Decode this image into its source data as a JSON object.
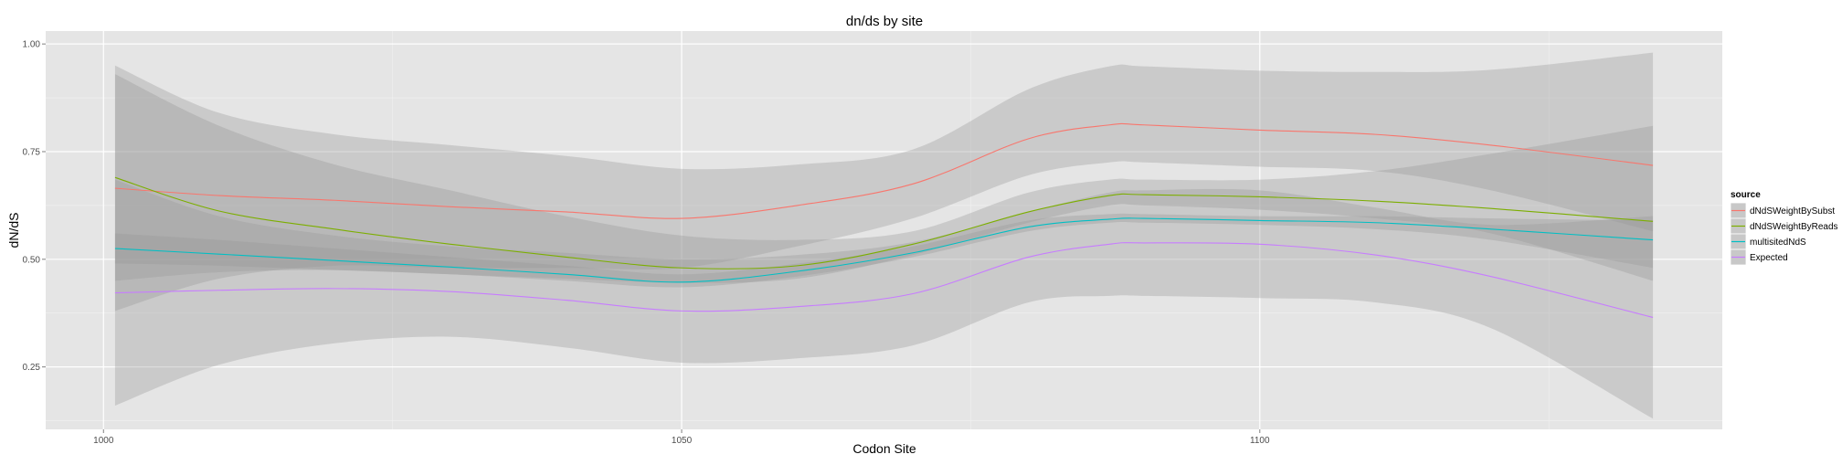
{
  "chart_data": {
    "type": "line",
    "title": "dn/ds by site",
    "xlabel": "Codon Site",
    "ylabel": "dN/dS",
    "xlim": [
      995,
      1140
    ],
    "ylim": [
      0.105,
      1.03
    ],
    "x_ticks": [
      1000,
      1050,
      1100
    ],
    "x_tick_labels": [
      "1000",
      "1050",
      "1100"
    ],
    "y_ticks": [
      0.25,
      0.5,
      0.75,
      1.0
    ],
    "y_tick_labels": [
      "0.25",
      "0.50",
      "0.75",
      "1.00"
    ],
    "grid": true,
    "legend": {
      "title": "source",
      "position": "right",
      "entries": [
        "dNdSWeightBySubst",
        "dNdSWeightByReads",
        "multisitedNdS",
        "Expected"
      ]
    },
    "band_color": "#999999",
    "panel_color": "#e5e5e5",
    "x": [
      1001,
      1010,
      1020,
      1030,
      1040,
      1050,
      1060,
      1070,
      1080,
      1087,
      1090,
      1100,
      1110,
      1120,
      1134
    ],
    "series": [
      {
        "name": "dNdSWeightBySubst",
        "color": "#f8766d",
        "y": [
          0.665,
          0.648,
          0.637,
          0.622,
          0.61,
          0.595,
          0.625,
          0.675,
          0.78,
          0.812,
          0.812,
          0.8,
          0.79,
          0.765,
          0.718
        ],
        "lower": [
          0.38,
          0.455,
          0.485,
          0.48,
          0.48,
          0.48,
          0.53,
          0.595,
          0.695,
          0.725,
          0.725,
          0.715,
          0.705,
          0.66,
          0.565
        ],
        "upper": [
          0.95,
          0.84,
          0.79,
          0.765,
          0.74,
          0.71,
          0.72,
          0.755,
          0.895,
          0.948,
          0.948,
          0.938,
          0.935,
          0.94,
          0.98
        ]
      },
      {
        "name": "dNdSWeightByReads",
        "color": "#7cae00",
        "y": [
          0.69,
          0.612,
          0.57,
          0.535,
          0.505,
          0.48,
          0.485,
          0.535,
          0.61,
          0.648,
          0.65,
          0.645,
          0.635,
          0.618,
          0.588
        ],
        "lower": [
          0.45,
          0.47,
          0.475,
          0.465,
          0.455,
          0.445,
          0.455,
          0.51,
          0.585,
          0.625,
          0.625,
          0.615,
          0.595,
          0.56,
          0.45
        ],
        "upper": [
          0.93,
          0.81,
          0.72,
          0.66,
          0.6,
          0.555,
          0.545,
          0.565,
          0.655,
          0.685,
          0.685,
          0.685,
          0.705,
          0.745,
          0.81
        ]
      },
      {
        "name": "multisitedNdS",
        "color": "#00bfc4",
        "y": [
          0.525,
          0.512,
          0.497,
          0.482,
          0.465,
          0.447,
          0.472,
          0.515,
          0.575,
          0.593,
          0.595,
          0.59,
          0.585,
          0.57,
          0.545
        ],
        "lower": [
          0.49,
          0.485,
          0.475,
          0.465,
          0.45,
          0.435,
          0.46,
          0.505,
          0.565,
          0.585,
          0.585,
          0.58,
          0.57,
          0.545,
          0.48
        ],
        "upper": [
          0.56,
          0.545,
          0.525,
          0.505,
          0.485,
          0.465,
          0.49,
          0.53,
          0.59,
          0.605,
          0.605,
          0.6,
          0.6,
          0.595,
          0.59
        ]
      },
      {
        "name": "Expected",
        "color": "#c77cff",
        "y": [
          0.422,
          0.428,
          0.432,
          0.425,
          0.405,
          0.38,
          0.39,
          0.42,
          0.505,
          0.535,
          0.538,
          0.535,
          0.51,
          0.46,
          0.365
        ],
        "lower": [
          0.16,
          0.255,
          0.305,
          0.32,
          0.295,
          0.26,
          0.27,
          0.3,
          0.4,
          0.415,
          0.415,
          0.41,
          0.4,
          0.34,
          0.13
        ],
        "upper": [
          0.685,
          0.6,
          0.555,
          0.53,
          0.515,
          0.5,
          0.51,
          0.54,
          0.61,
          0.655,
          0.66,
          0.66,
          0.62,
          0.58,
          0.6
        ]
      }
    ]
  }
}
